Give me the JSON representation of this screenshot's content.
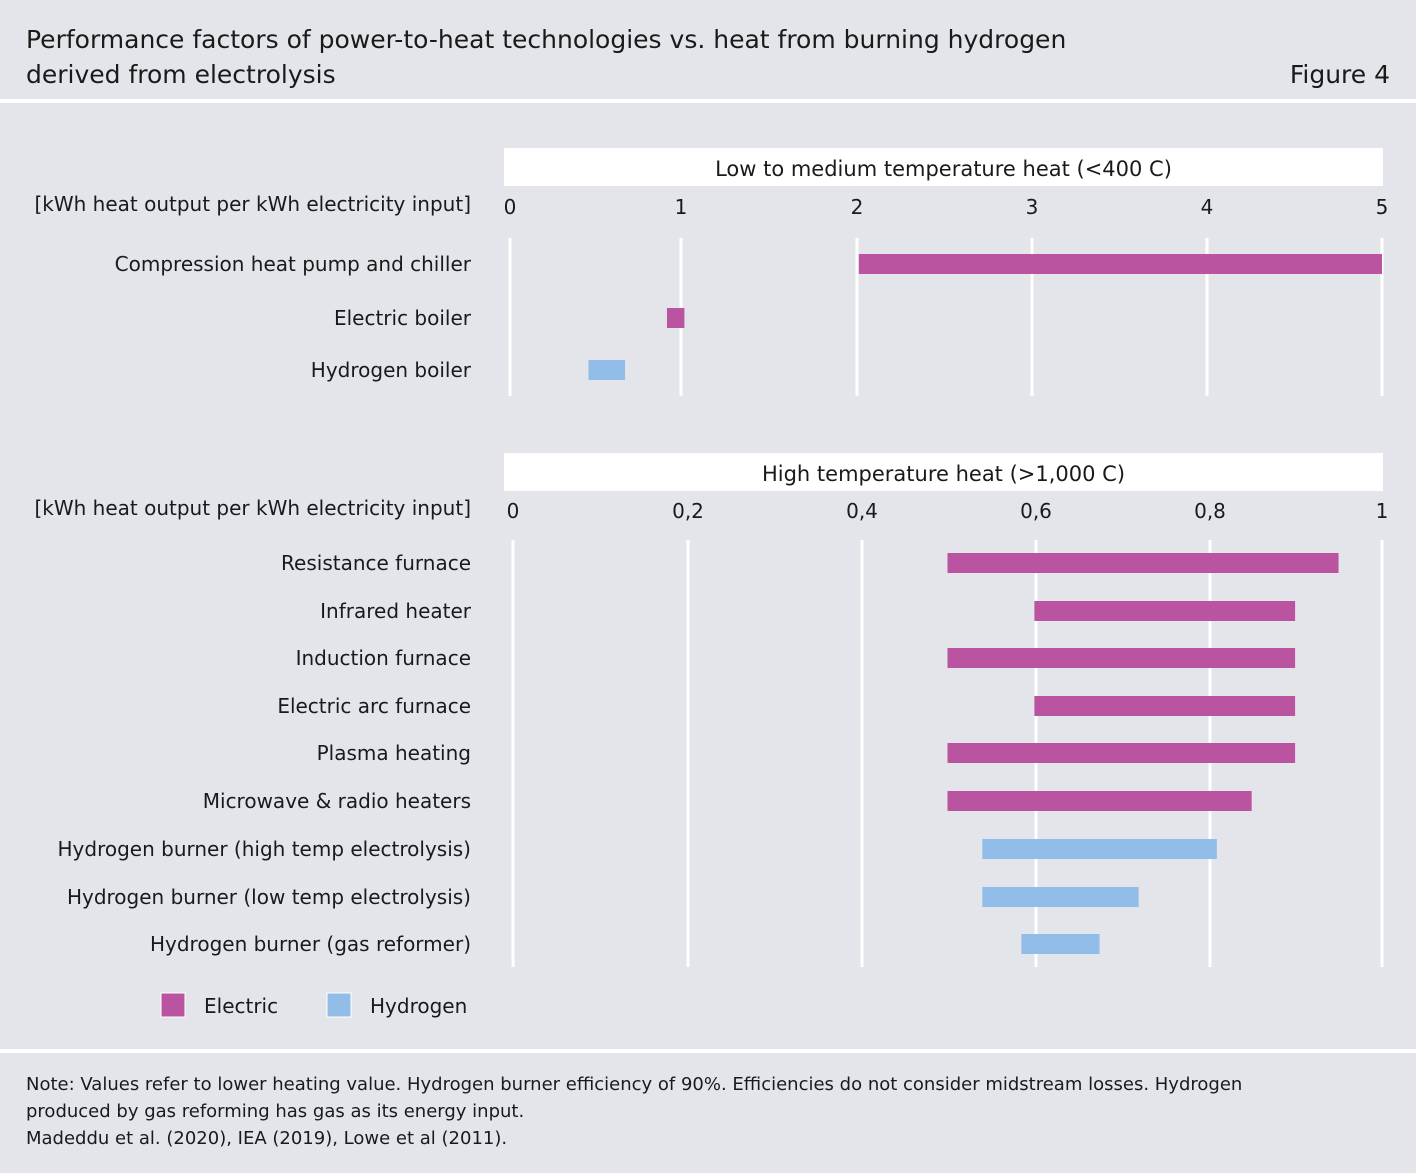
{
  "header": {
    "title_line1": "Performance factors of power-to-heat technologies vs. heat from burning hydrogen",
    "title_line2": "derived from electrolysis",
    "figure_label": "Figure 4"
  },
  "colors": {
    "background": "#e3e5ea",
    "panel": "#ffffff",
    "electric": "#bb54a0",
    "hydrogen": "#93bde9"
  },
  "chart_data": [
    {
      "type": "bar",
      "orientation": "horizontal",
      "range_bars": true,
      "title": "Low to medium temperature heat (<400 C)",
      "unit_label": "[kWh heat output per kWh electricity input]",
      "xlim": [
        0,
        5
      ],
      "ticks": [
        0,
        1,
        2,
        3,
        4,
        5
      ],
      "tick_labels": [
        "0",
        "1",
        "2",
        "3",
        "4",
        "5"
      ],
      "grid": true,
      "categories": [
        "Compression heat pump and chiller",
        "Electric boiler",
        "Hydrogen boiler"
      ],
      "ranges": [
        [
          2.0,
          5.0
        ],
        [
          0.9,
          1.0
        ],
        [
          0.45,
          0.66
        ]
      ],
      "series_of": [
        "Electric",
        "Electric",
        "Hydrogen"
      ]
    },
    {
      "type": "bar",
      "orientation": "horizontal",
      "range_bars": true,
      "title": "High temperature heat (>1,000 C)",
      "unit_label": "[kWh heat output per kWh electricity input]",
      "xlim": [
        0,
        1
      ],
      "ticks": [
        0,
        0.2,
        0.4,
        0.6,
        0.8,
        1
      ],
      "tick_labels": [
        "0",
        "0,2",
        "0,4",
        "0,6",
        "0,8",
        "1"
      ],
      "grid": true,
      "categories": [
        "Resistance furnace",
        "Infrared heater",
        "Induction furnace",
        "Electric arc furnace",
        "Plasma heating",
        "Microwave & radio heaters",
        "Hydrogen burner (high temp electrolysis)",
        "Hydrogen burner (low temp electrolysis)",
        "Hydrogen burner (gas reformer)"
      ],
      "ranges": [
        [
          0.5,
          0.95
        ],
        [
          0.6,
          0.9
        ],
        [
          0.5,
          0.9
        ],
        [
          0.6,
          0.9
        ],
        [
          0.5,
          0.9
        ],
        [
          0.5,
          0.85
        ],
        [
          0.54,
          0.81
        ],
        [
          0.54,
          0.72
        ],
        [
          0.585,
          0.675
        ]
      ],
      "series_of": [
        "Electric",
        "Electric",
        "Electric",
        "Electric",
        "Electric",
        "Electric",
        "Hydrogen",
        "Hydrogen",
        "Hydrogen"
      ]
    }
  ],
  "legend": {
    "placement": "bottom-left",
    "items": [
      {
        "name": "Electric",
        "color": "#bb54a0"
      },
      {
        "name": "Hydrogen",
        "color": "#93bde9"
      }
    ]
  },
  "notes": {
    "line1": "Note: Values refer to lower heating value. Hydrogen burner efficiency of 90%. Efficiencies do not consider midstream losses. Hydrogen",
    "line2": "produced by gas reforming has gas as its energy input.",
    "line3": "Madeddu et al. (2020), IEA (2019), Lowe et al (2011)."
  }
}
